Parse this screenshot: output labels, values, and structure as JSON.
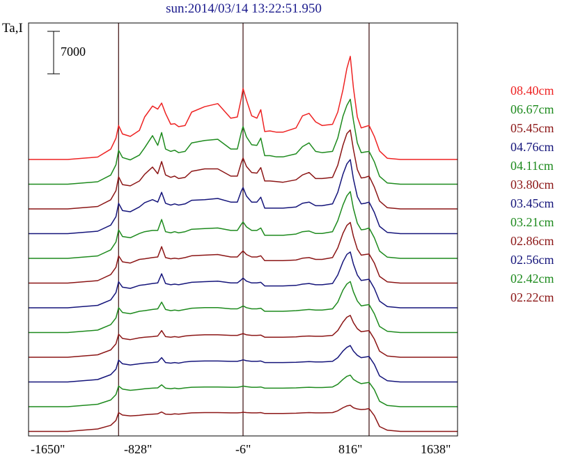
{
  "title": "sun:2014/03/14 13:22:51.950",
  "ylabel": "Ta,I",
  "scale_bar_label": "7000",
  "colors": {
    "red": "#ee2222",
    "green": "#1d8a1d",
    "darkred": "#8b1515",
    "blue": "#14147a"
  },
  "chart_data": {
    "type": "line",
    "xlabel": "",
    "xlim": [
      -1650,
      1638
    ],
    "x_ticks": [
      "-1650\"",
      "-828\"",
      "-6\"",
      "816\"",
      "1638\""
    ],
    "x_tick_values": [
      -1650,
      -828,
      -6,
      816,
      1638
    ],
    "vertical_markers": [
      -960,
      -6,
      960
    ],
    "scale_bar": 7000,
    "profile_x": [
      -1650,
      -1350,
      -1120,
      -1020,
      -980,
      -960,
      -930,
      -870,
      -800,
      -760,
      -700,
      -660,
      -630,
      -600,
      -560,
      -530,
      -500,
      -450,
      -400,
      -300,
      -200,
      -100,
      -50,
      -20,
      -6,
      20,
      60,
      100,
      130,
      160,
      200,
      250,
      300,
      400,
      450,
      500,
      550,
      600,
      680,
      720,
      760,
      790,
      816,
      840,
      870,
      900,
      930,
      960,
      1000,
      1040,
      1100,
      1200,
      1400,
      1638
    ],
    "series": [
      {
        "name": "08.40cm",
        "color": "red",
        "offset": 0,
        "values": [
          0,
          0,
          40,
          170,
          350,
          560,
          420,
          380,
          480,
          700,
          880,
          830,
          930,
          760,
          580,
          590,
          540,
          560,
          780,
          870,
          920,
          680,
          700,
          1000,
          1170,
          980,
          720,
          680,
          820,
          460,
          470,
          450,
          450,
          520,
          720,
          760,
          620,
          560,
          580,
          780,
          1150,
          1500,
          1700,
          1180,
          700,
          520,
          540,
          560,
          380,
          140,
          20,
          0,
          0,
          0
        ]
      },
      {
        "name": "06.67cm",
        "color": "green",
        "offset": 1,
        "values": [
          0,
          0,
          40,
          150,
          320,
          560,
          440,
          400,
          480,
          600,
          800,
          640,
          850,
          580,
          540,
          560,
          520,
          540,
          680,
          720,
          740,
          580,
          580,
          850,
          950,
          780,
          650,
          640,
          760,
          470,
          470,
          450,
          450,
          500,
          620,
          680,
          540,
          520,
          540,
          760,
          1120,
          1300,
          1400,
          1050,
          680,
          520,
          530,
          540,
          370,
          130,
          20,
          0,
          0,
          0
        ]
      },
      {
        "name": "05.45cm",
        "color": "darkred",
        "offset": 2,
        "values": [
          0,
          0,
          40,
          150,
          300,
          530,
          400,
          380,
          460,
          570,
          690,
          580,
          780,
          560,
          520,
          540,
          500,
          520,
          620,
          660,
          660,
          540,
          540,
          760,
          840,
          700,
          600,
          590,
          680,
          460,
          460,
          450,
          440,
          480,
          560,
          600,
          500,
          500,
          520,
          720,
          1050,
          1240,
          1300,
          980,
          650,
          510,
          520,
          540,
          360,
          130,
          20,
          0,
          0,
          0
        ]
      },
      {
        "name": "04.76cm",
        "color": "blue",
        "offset": 3,
        "values": [
          0,
          0,
          40,
          140,
          280,
          500,
          380,
          360,
          440,
          510,
          560,
          520,
          680,
          500,
          470,
          490,
          470,
          490,
          550,
          560,
          580,
          520,
          520,
          700,
          760,
          620,
          520,
          520,
          600,
          420,
          420,
          420,
          420,
          440,
          500,
          520,
          460,
          460,
          490,
          680,
          980,
          1150,
          1220,
          900,
          610,
          490,
          500,
          520,
          350,
          120,
          20,
          0,
          0,
          0
        ]
      },
      {
        "name": "04.11cm",
        "color": "green",
        "offset": 4,
        "values": [
          0,
          0,
          40,
          140,
          270,
          470,
          360,
          340,
          410,
          440,
          460,
          460,
          640,
          440,
          420,
          440,
          420,
          440,
          480,
          490,
          500,
          460,
          460,
          560,
          600,
          520,
          460,
          460,
          500,
          380,
          380,
          380,
          380,
          400,
          440,
          450,
          410,
          410,
          440,
          620,
          880,
          1030,
          1100,
          820,
          580,
          470,
          480,
          500,
          340,
          120,
          20,
          0,
          0,
          0
        ]
      },
      {
        "name": "03.80cm",
        "color": "darkred",
        "offset": 5,
        "values": [
          0,
          0,
          40,
          140,
          260,
          450,
          350,
          330,
          390,
          400,
          420,
          430,
          600,
          420,
          400,
          410,
          400,
          420,
          450,
          460,
          470,
          430,
          430,
          500,
          530,
          470,
          430,
          430,
          450,
          370,
          370,
          370,
          370,
          380,
          410,
          420,
          390,
          390,
          420,
          580,
          820,
          950,
          1000,
          770,
          560,
          460,
          470,
          480,
          330,
          110,
          20,
          0,
          0,
          0
        ]
      },
      {
        "name": "03.45cm",
        "color": "blue",
        "offset": 6,
        "values": [
          0,
          0,
          40,
          130,
          250,
          430,
          340,
          320,
          370,
          380,
          400,
          410,
          560,
          400,
          380,
          390,
          380,
          400,
          420,
          430,
          440,
          410,
          410,
          460,
          490,
          440,
          410,
          410,
          420,
          360,
          360,
          360,
          360,
          370,
          390,
          400,
          380,
          380,
          400,
          540,
          760,
          880,
          920,
          720,
          540,
          450,
          460,
          470,
          320,
          110,
          20,
          0,
          0,
          0
        ]
      },
      {
        "name": "03.21cm",
        "color": "green",
        "offset": 7,
        "values": [
          0,
          0,
          40,
          130,
          240,
          410,
          330,
          310,
          350,
          360,
          380,
          390,
          500,
          380,
          360,
          370,
          360,
          380,
          400,
          410,
          410,
          390,
          390,
          420,
          440,
          410,
          390,
          390,
          400,
          350,
          350,
          350,
          350,
          360,
          370,
          380,
          370,
          370,
          390,
          500,
          700,
          800,
          840,
          670,
          520,
          440,
          450,
          460,
          310,
          100,
          20,
          0,
          0,
          0
        ]
      },
      {
        "name": "02.86cm",
        "color": "darkred",
        "offset": 8,
        "values": [
          0,
          0,
          40,
          120,
          220,
          380,
          310,
          290,
          320,
          330,
          340,
          350,
          440,
          340,
          330,
          340,
          330,
          350,
          360,
          370,
          370,
          360,
          360,
          380,
          390,
          370,
          360,
          360,
          365,
          330,
          330,
          330,
          330,
          335,
          345,
          350,
          345,
          345,
          360,
          440,
          580,
          660,
          690,
          570,
          470,
          420,
          430,
          440,
          300,
          100,
          20,
          0,
          0,
          0
        ]
      },
      {
        "name": "02.56cm",
        "color": "blue",
        "offset": 9,
        "values": [
          0,
          0,
          40,
          120,
          210,
          360,
          300,
          280,
          300,
          310,
          320,
          330,
          400,
          320,
          310,
          320,
          310,
          330,
          340,
          345,
          345,
          340,
          340,
          355,
          365,
          350,
          340,
          340,
          345,
          320,
          320,
          320,
          320,
          325,
          330,
          335,
          330,
          330,
          340,
          400,
          510,
          570,
          600,
          510,
          440,
          400,
          410,
          420,
          290,
          100,
          20,
          0,
          0,
          0
        ]
      },
      {
        "name": "02.42cm",
        "color": "green",
        "offset": 10,
        "values": [
          0,
          0,
          40,
          110,
          200,
          340,
          290,
          270,
          285,
          295,
          305,
          310,
          360,
          305,
          295,
          305,
          295,
          310,
          320,
          325,
          325,
          320,
          320,
          330,
          340,
          330,
          320,
          320,
          325,
          305,
          305,
          305,
          305,
          310,
          315,
          320,
          315,
          315,
          325,
          370,
          450,
          500,
          520,
          450,
          410,
          380,
          390,
          400,
          280,
          90,
          20,
          0,
          0,
          0
        ]
      },
      {
        "name": "02.22cm",
        "color": "darkred",
        "offset": 11,
        "values": [
          0,
          0,
          40,
          100,
          180,
          310,
          270,
          255,
          265,
          275,
          285,
          290,
          320,
          285,
          280,
          290,
          285,
          295,
          305,
          310,
          310,
          305,
          305,
          310,
          315,
          310,
          305,
          305,
          310,
          295,
          295,
          295,
          295,
          300,
          305,
          310,
          305,
          305,
          310,
          340,
          390,
          420,
          430,
          390,
          370,
          360,
          365,
          375,
          260,
          80,
          20,
          0,
          0,
          0
        ]
      }
    ]
  }
}
